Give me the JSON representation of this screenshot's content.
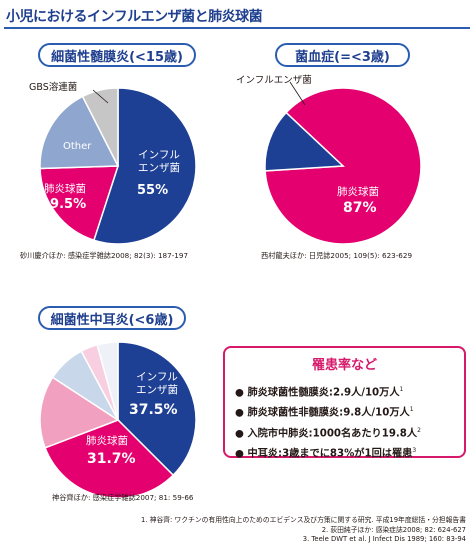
{
  "title": "小児におけるインフルエンザ菌と肺炎球菌",
  "colors": {
    "hib": "#1d3f94",
    "pneumo": "#e4006e",
    "other_blue": "#8fa6cf",
    "gbs": "#c6c6c6",
    "mid_pink": "#f2a0c0",
    "light_blue": "#c9d7ea",
    "pale_pink": "#f7cfe0",
    "pale": "#eef2f8",
    "accent_blue": "#2a5db0"
  },
  "chart_data": [
    {
      "type": "pie",
      "title": "細菌性髄膜炎(<15歳)",
      "citation": "砂川慶介ほか: 感染症学雑誌2008; 82(3): 187-197",
      "slices": [
        {
          "label": "インフルエンザ菌",
          "value_label": "55%",
          "value": 55
        },
        {
          "label": "肺炎球菌",
          "value_label": "19.5%",
          "value": 19.5
        },
        {
          "label": "Other",
          "value": 18
        },
        {
          "label": "GBS溶連菌",
          "value": 7.5
        }
      ]
    },
    {
      "type": "pie",
      "title": "菌血症(=<3歳)",
      "citation": "西村龍夫ほか: 日児誌2005; 109(5): 623-629",
      "slices": [
        {
          "label": "肺炎球菌",
          "value_label": "87%",
          "value": 87
        },
        {
          "label": "インフルエンザ菌",
          "value": 13
        }
      ]
    },
    {
      "type": "pie",
      "title": "細菌性中耳炎(<6歳)",
      "citation": "神谷齊ほか: 感染症学雑誌2007; 81: 59-66",
      "slices": [
        {
          "label": "インフルエンザ菌",
          "value_label": "37.5%",
          "value": 37.5
        },
        {
          "label": "肺炎球菌",
          "value_label": "31.7%",
          "value": 31.7
        },
        {
          "value": 15
        },
        {
          "value": 8
        },
        {
          "value": 3.5
        },
        {
          "value": 4.3
        }
      ]
    }
  ],
  "rates": {
    "title": "罹患率など",
    "items": [
      {
        "text": "肺炎球菌性髄膜炎:2.9人/10万人",
        "ref": "1"
      },
      {
        "text": "肺炎球菌性非髄膜炎:9.8人/10万人",
        "ref": "1"
      },
      {
        "text": "入院市中肺炎:1000名あたり19.8人",
        "ref": "2"
      },
      {
        "text": "中耳炎:3歳までに83%が1回は罹患",
        "ref": "3"
      }
    ]
  },
  "references": [
    "1. 神谷齊: ワクチンの有用性向上のためのエビデンス及び方策に関する研究. 平成19年度総括・分担報告書",
    "2. 荻田純子ほか: 感染症誌2008; 82: 624-627",
    "3. Teele DWT et al. J Infect Dis 1989; 160: 83-94"
  ]
}
